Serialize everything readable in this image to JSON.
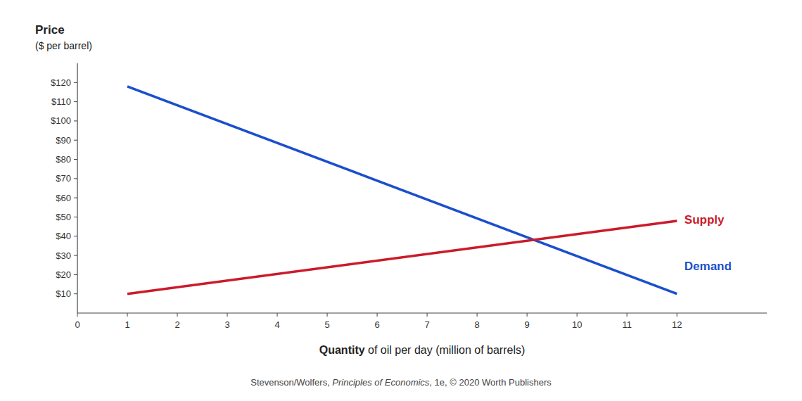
{
  "chart_data": {
    "type": "line",
    "series": [
      {
        "color": "#1a4fcc",
        "x": [
          1,
          12
        ],
        "values": [
          118,
          10
        ]
      },
      {
        "color": "#cc1a2a",
        "x": [
          1,
          12
        ],
        "values": [
          10,
          48
        ]
      }
    ],
    "annotations": [
      {
        "text": "Supply",
        "x": 12.15,
        "y": 48,
        "color": "#cc1a2a"
      },
      {
        "text": "Demand",
        "x": 12.15,
        "y": 24,
        "color": "#1a4fcc"
      }
    ],
    "xlim": [
      0,
      13.8
    ],
    "ylim": [
      0,
      130
    ],
    "xticks": [
      0,
      1,
      2,
      3,
      4,
      5,
      6,
      7,
      8,
      9,
      10,
      11,
      12
    ],
    "yticks": [
      {
        "value": 10,
        "label": "$10"
      },
      {
        "value": 20,
        "label": "$20"
      },
      {
        "value": 30,
        "label": "$30"
      },
      {
        "value": 40,
        "label": "$40"
      },
      {
        "value": 50,
        "label": "$50"
      },
      {
        "value": 60,
        "label": "$60"
      },
      {
        "value": 70,
        "label": "$70"
      },
      {
        "value": 80,
        "label": "$80"
      },
      {
        "value": 90,
        "label": "$90"
      },
      {
        "value": 100,
        "label": "$100"
      },
      {
        "value": 110,
        "label": "$110"
      },
      {
        "value": 120,
        "label": "$120"
      }
    ],
    "y_label": [
      "Price",
      "($ per barrel)"
    ],
    "x_label": [
      "Quantity",
      " of oil per day (million of barrels)"
    ],
    "footnote": [
      "Stevenson/Wolfers, ",
      "Principles of Economics",
      ", 1e, © 2020 Worth Publishers"
    ],
    "grid": false
  }
}
